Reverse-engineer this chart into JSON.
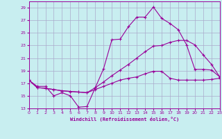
{
  "xlabel": "Windchill (Refroidissement éolien,°C)",
  "xlim": [
    0,
    23
  ],
  "ylim": [
    13,
    30
  ],
  "yticks": [
    13,
    15,
    17,
    19,
    21,
    23,
    25,
    27,
    29
  ],
  "xticks": [
    0,
    1,
    2,
    3,
    4,
    5,
    6,
    7,
    8,
    9,
    10,
    11,
    12,
    13,
    14,
    15,
    16,
    17,
    18,
    19,
    20,
    21,
    22,
    23
  ],
  "bg_color": "#c8eef0",
  "line_color": "#990099",
  "grid_color": "#aaaacc",
  "line1_x": [
    0,
    1,
    2,
    3,
    4,
    5,
    6,
    7,
    8,
    9,
    10,
    11,
    12,
    13,
    14,
    15,
    16,
    17,
    18,
    19,
    20,
    21,
    22,
    23
  ],
  "line1_y": [
    17.5,
    16.5,
    16.5,
    15.0,
    15.5,
    15.0,
    13.2,
    13.3,
    16.3,
    19.3,
    23.9,
    24.0,
    26.0,
    27.5,
    27.5,
    29.1,
    27.3,
    26.5,
    25.5,
    23.1,
    19.2,
    19.2,
    19.1,
    18.0
  ],
  "line2_x": [
    0,
    1,
    2,
    3,
    4,
    5,
    6,
    7,
    8,
    9,
    10,
    11,
    12,
    13,
    14,
    15,
    16,
    17,
    18,
    19,
    20,
    21,
    22,
    23
  ],
  "line2_y": [
    17.5,
    16.3,
    16.2,
    16.0,
    15.8,
    15.7,
    15.6,
    15.5,
    16.3,
    17.2,
    18.2,
    19.1,
    20.0,
    21.0,
    22.0,
    22.9,
    23.0,
    23.5,
    23.8,
    23.8,
    23.1,
    21.5,
    20.0,
    18.0
  ],
  "line3_x": [
    0,
    1,
    2,
    3,
    4,
    5,
    6,
    7,
    8,
    9,
    10,
    11,
    12,
    13,
    14,
    15,
    16,
    17,
    18,
    19,
    20,
    21,
    22,
    23
  ],
  "line3_y": [
    17.5,
    16.3,
    16.2,
    16.0,
    15.8,
    15.7,
    15.6,
    15.5,
    16.0,
    16.5,
    17.0,
    17.5,
    17.8,
    18.0,
    18.5,
    18.9,
    18.9,
    17.8,
    17.5,
    17.5,
    17.5,
    17.5,
    17.6,
    17.8
  ]
}
